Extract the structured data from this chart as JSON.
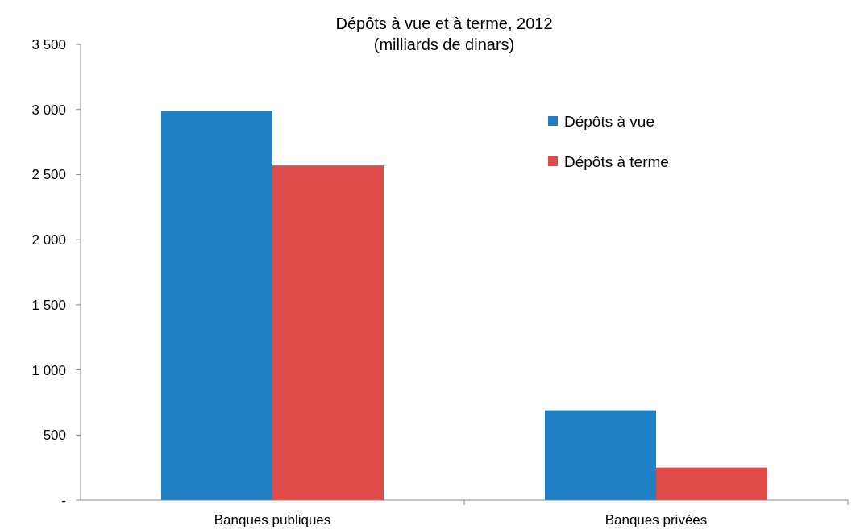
{
  "chart_data": {
    "type": "bar",
    "title": "Dépôts à vue et à terme, 2012",
    "subtitle": "(milliards de dinars)",
    "categories": [
      "Banques publiques",
      "Banques privées"
    ],
    "series": [
      {
        "name": "Dépôts à vue",
        "color": "#2080c4",
        "values": [
          2990,
          690
        ]
      },
      {
        "name": "Dépôts à terme",
        "color": "#df4b48",
        "values": [
          2570,
          250
        ]
      }
    ],
    "ylim": [
      0,
      3500
    ],
    "yticks": [
      {
        "value": 0,
        "label": "-"
      },
      {
        "value": 500,
        "label": "500"
      },
      {
        "value": 1000,
        "label": "1 000"
      },
      {
        "value": 1500,
        "label": "1 500"
      },
      {
        "value": 2000,
        "label": "2 000"
      },
      {
        "value": 2500,
        "label": "2 500"
      },
      {
        "value": 3000,
        "label": "3 000"
      },
      {
        "value": 3500,
        "label": "3 500"
      }
    ],
    "grid": false,
    "legend": "top right"
  }
}
